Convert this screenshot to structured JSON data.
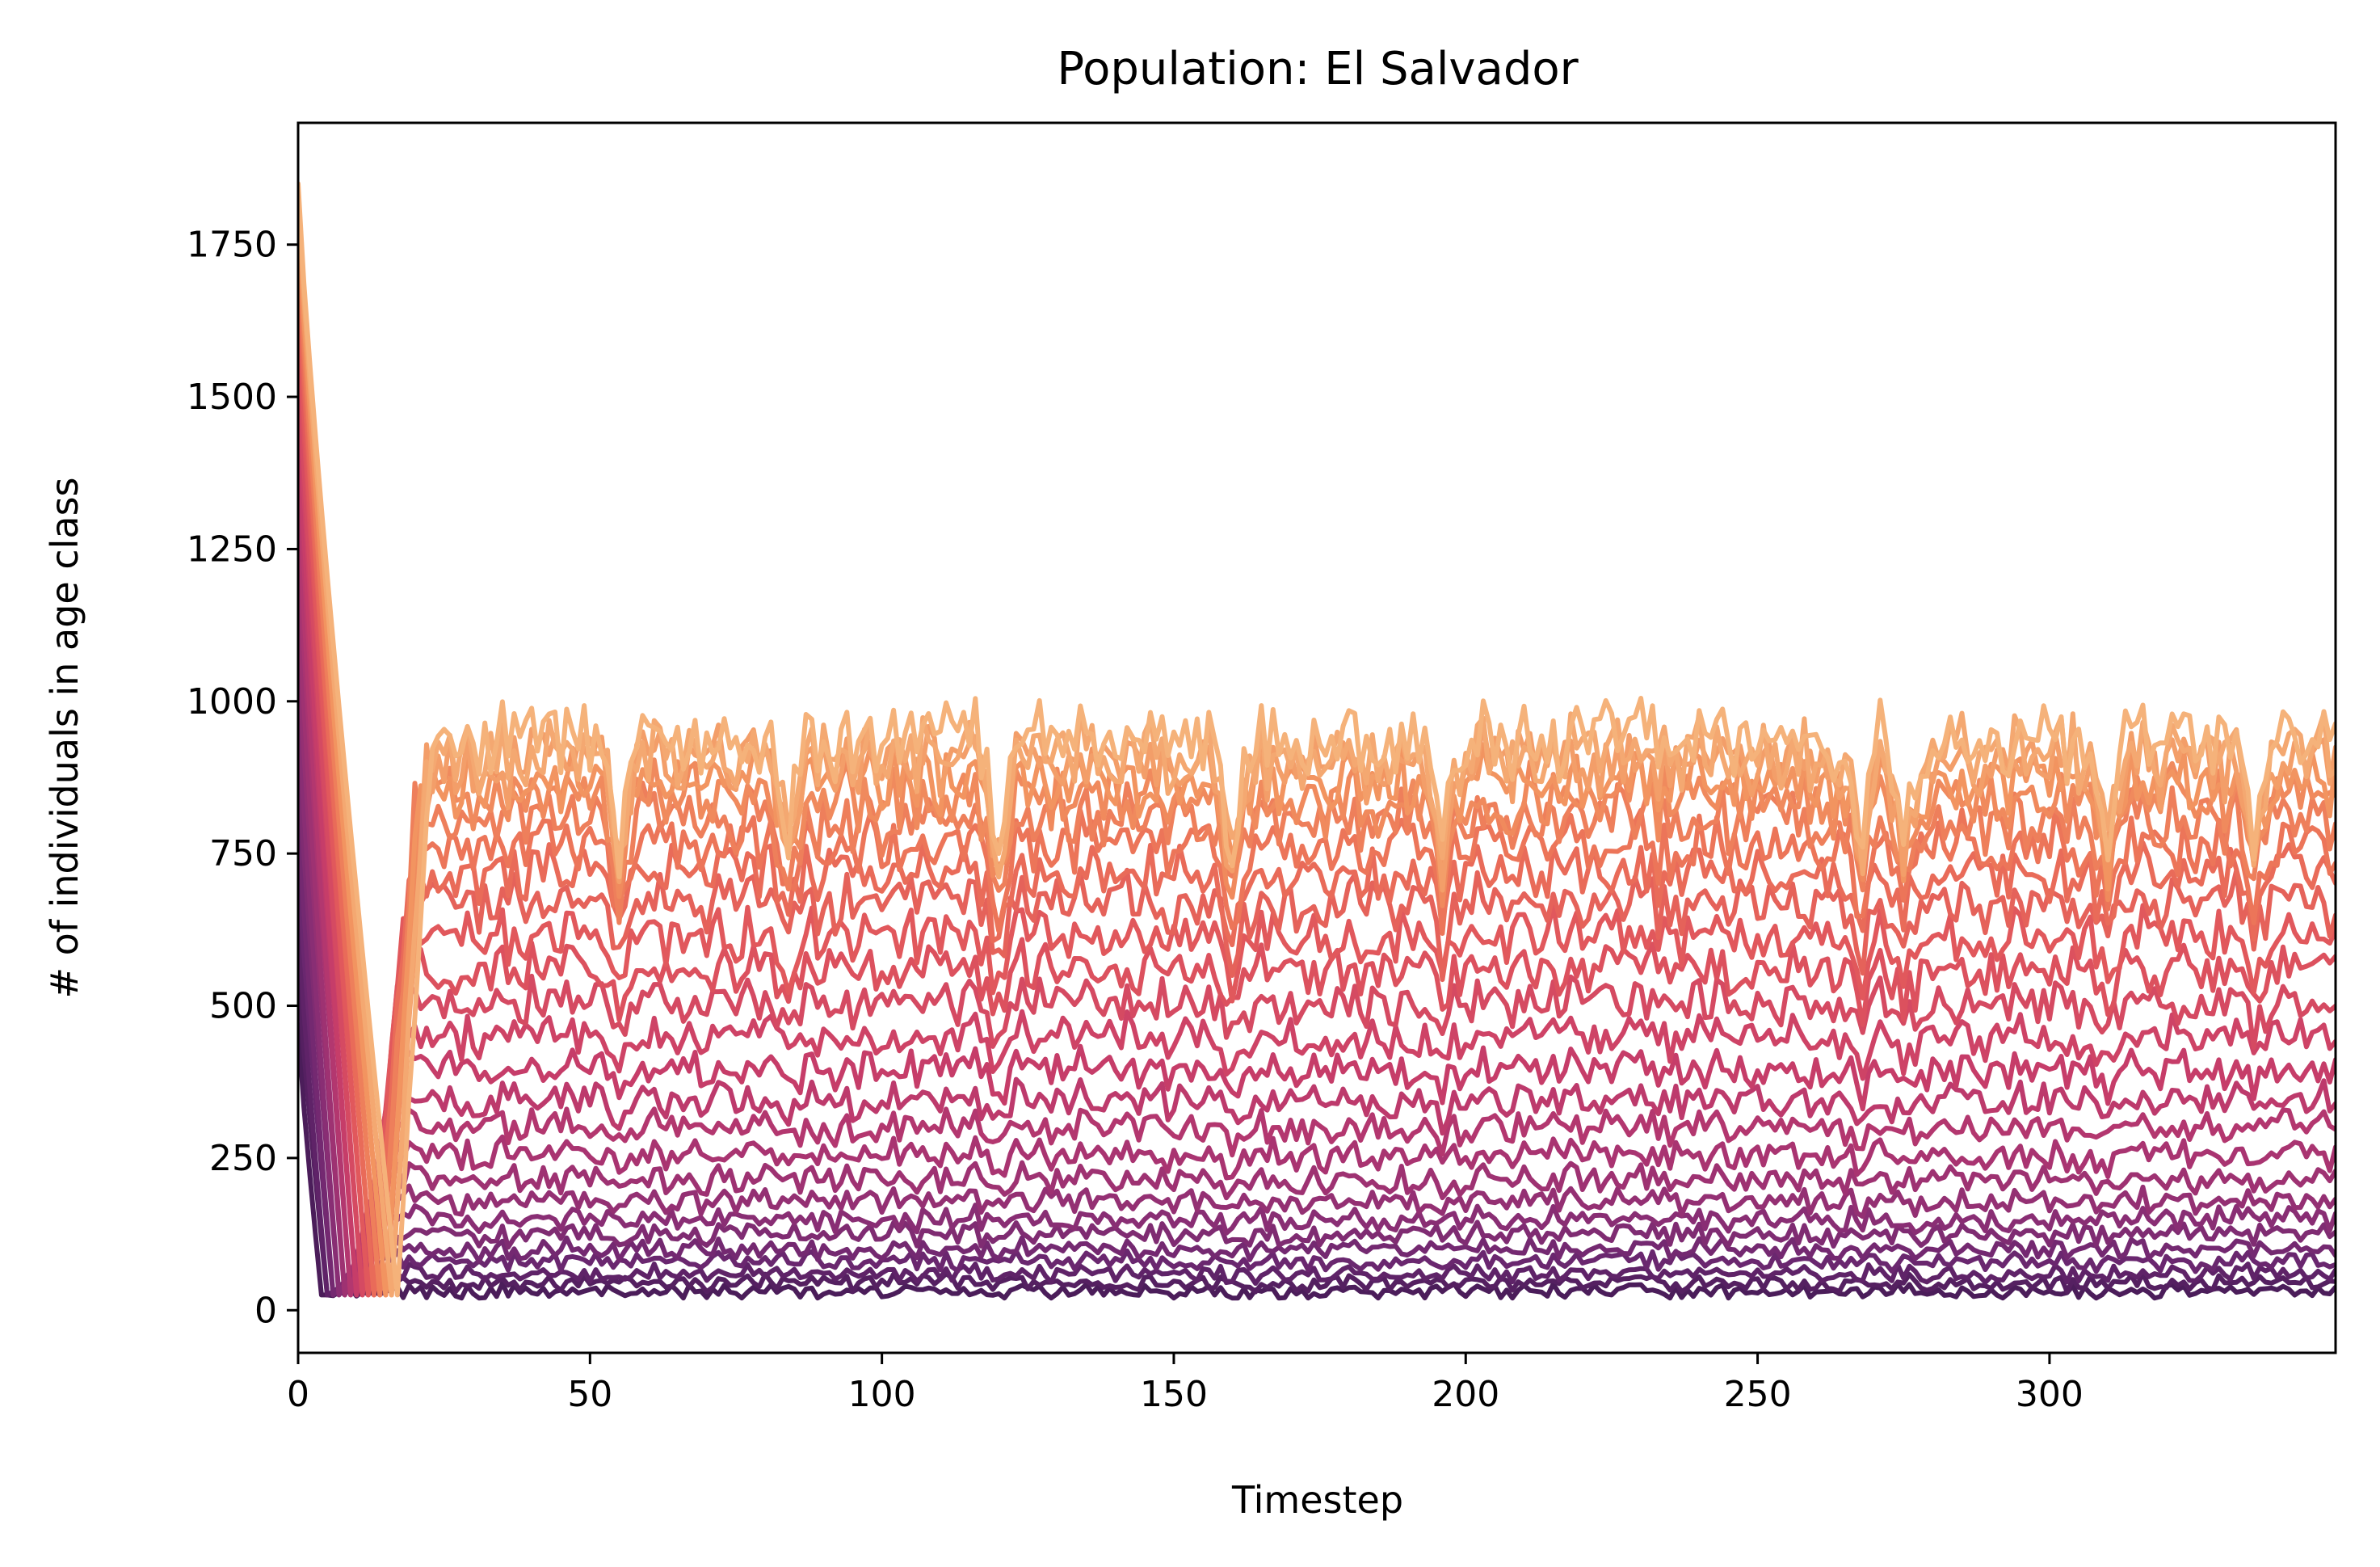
{
  "chart_data": {
    "type": "line",
    "title": "Population: El Salvador",
    "xlabel": "Timestep",
    "ylabel": "# of individuals in age class",
    "xlim": [
      0,
      349
    ],
    "ylim": [
      -70,
      1950
    ],
    "xticks": [
      0,
      50,
      100,
      150,
      200,
      250,
      300
    ],
    "yticks": [
      0,
      250,
      500,
      750,
      1000,
      1250,
      1500,
      1750
    ],
    "grid": false,
    "legend": "none",
    "timesteps": 349,
    "colormap": [
      "#4b1d5a",
      "#6b2770",
      "#8c2f74",
      "#ad3571",
      "#cb3f68",
      "#e0555c",
      "#ec7258",
      "#f2935f",
      "#f5b27a"
    ],
    "series_count": 26,
    "series_summary": {
      "initial_values": [
        470,
        560,
        650,
        740,
        830,
        920,
        1010,
        1100,
        1190,
        1280,
        1350,
        1420,
        1480,
        1540,
        1590,
        1640,
        1680,
        1710,
        1740,
        1760,
        1780,
        1800,
        1810,
        1830,
        1840,
        1850
      ],
      "trough_value": 25,
      "trough_timestep": 17,
      "steady_state_levels": [
        30,
        45,
        60,
        80,
        100,
        125,
        150,
        180,
        215,
        255,
        300,
        345,
        395,
        450,
        505,
        560,
        615,
        670,
        720,
        765,
        805,
        840,
        870,
        895,
        915,
        935
      ],
      "peak_steady_value": 1030,
      "disturbance_timesteps": [
        55,
        84,
        120,
        160,
        196,
        268,
        275,
        310,
        335
      ]
    }
  }
}
